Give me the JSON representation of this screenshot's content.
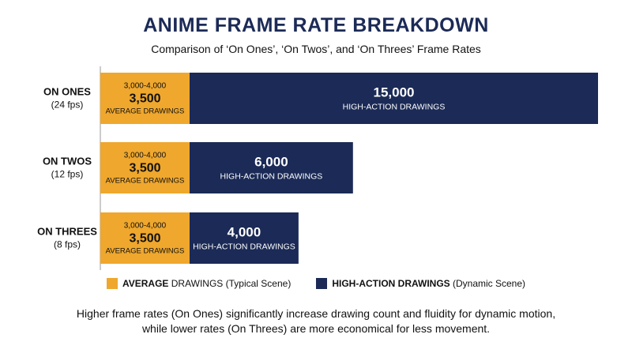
{
  "title": "ANIME FRAME RATE BREAKDOWN",
  "subtitle": "Comparison of ‘On Ones’, ‘On Twos’, and ‘On Threes’ Frame Rates",
  "colors": {
    "average": "#efa72d",
    "high_action": "#1b2a56",
    "title": "#1b2a56"
  },
  "chart_data": {
    "type": "bar",
    "orientation": "horizontal",
    "stacked": true,
    "categories": [
      {
        "name": "ON ONES",
        "fps": "(24 fps)"
      },
      {
        "name": "ON TWOS",
        "fps": "(12 fps)"
      },
      {
        "name": "ON THREES",
        "fps": "(8 fps)"
      }
    ],
    "series": [
      {
        "name": "AVERAGE DRAWINGS",
        "values": [
          3500,
          3500,
          3500
        ],
        "range_labels": [
          "3,000-4,000",
          "3,000-4,000",
          "3,000-4,000"
        ],
        "value_labels": [
          "3,500",
          "3,500",
          "3,500"
        ],
        "caption": "AVERAGE DRAWINGS"
      },
      {
        "name": "HIGH-ACTION DRAWINGS",
        "values": [
          15000,
          6000,
          4000
        ],
        "value_labels": [
          "15,000",
          "6,000",
          "4,000"
        ],
        "captions": [
          "HIGH-ACTION DRAWINGS",
          "HIGH-ACTION DRAWINGS",
          "HIGH-ACTION DRAWINGS"
        ]
      }
    ],
    "axis": {
      "grid": false
    }
  },
  "legend": [
    {
      "strong": "AVERAGE",
      "rest": " DRAWINGS (Typical Scene)",
      "color": "#efa72d"
    },
    {
      "strong": "HIGH-ACTION DRAWINGS",
      "rest": " (Dynamic Scene)",
      "color": "#1b2a56"
    }
  ],
  "footer": {
    "line1": "Higher frame rates (On Ones) significantly increase drawing count and fluidity for dynamic motion,",
    "line2": "while lower rates (On Threes) are more economical for less movement."
  }
}
